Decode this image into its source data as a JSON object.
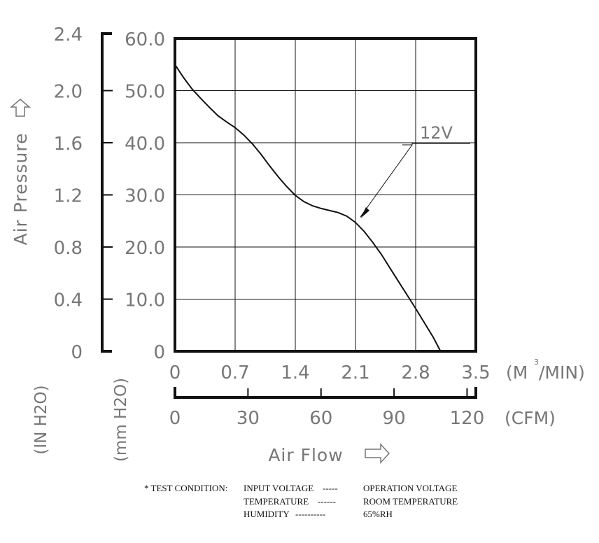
{
  "chart_data": {
    "type": "line",
    "xlabel": "Air Flow",
    "ylabel": "Air Pressure",
    "x_axis_primary": {
      "unit": "(M³/MIN)",
      "unit_prefix": "(M",
      "unit_sup": "3",
      "unit_suffix": "/MIN)",
      "ticks": [
        "0",
        "0.7",
        "1.4",
        "2.1",
        "2.8",
        "3.5"
      ],
      "range": [
        0,
        3.5
      ]
    },
    "x_axis_secondary": {
      "unit": "(CFM)",
      "ticks": [
        "0",
        "30",
        "60",
        "90",
        "120"
      ],
      "range": [
        0,
        123.6
      ]
    },
    "y_axis_primary": {
      "unit": "(mm H2O)",
      "ticks": [
        "0",
        "10.0",
        "20.0",
        "30.0",
        "40.0",
        "50.0",
        "60.0"
      ],
      "range": [
        0,
        60
      ]
    },
    "y_axis_secondary": {
      "unit": "(IN H2O)",
      "ticks": [
        "0",
        "0.4",
        "0.8",
        "1.2",
        "1.6",
        "2.0",
        "2.4"
      ],
      "range": [
        0,
        2.4
      ]
    },
    "grid": true,
    "series": [
      {
        "name": "12V",
        "x": [
          0,
          0.1,
          0.2,
          0.3,
          0.4,
          0.5,
          0.6,
          0.7,
          0.8,
          0.9,
          1.0,
          1.1,
          1.2,
          1.3,
          1.4,
          1.5,
          1.6,
          1.7,
          1.8,
          1.9,
          2.0,
          2.1,
          2.2,
          2.3,
          2.4,
          2.5,
          2.6,
          2.7,
          2.8,
          2.9,
          3.0,
          3.09
        ],
        "y": [
          55.0,
          52.5,
          50.3,
          48.5,
          46.8,
          45.2,
          44.0,
          42.9,
          41.5,
          39.8,
          37.8,
          35.6,
          33.5,
          31.6,
          29.9,
          28.7,
          27.9,
          27.4,
          27.0,
          26.6,
          25.9,
          24.7,
          23.0,
          20.9,
          18.6,
          16.0,
          13.4,
          10.8,
          8.2,
          5.5,
          2.8,
          0
        ]
      }
    ]
  },
  "test_condition": {
    "label": "* TEST CONDITION:",
    "rows": [
      {
        "key": "INPUT VOLTAGE",
        "dashes": "-----",
        "value": "OPERATION VOLTAGE"
      },
      {
        "key": "TEMPERATURE",
        "dashes": "------",
        "value": "ROOM TEMPERATURE"
      },
      {
        "key": "HUMIDITY",
        "dashes": "----------",
        "value": "65%RH"
      }
    ]
  }
}
